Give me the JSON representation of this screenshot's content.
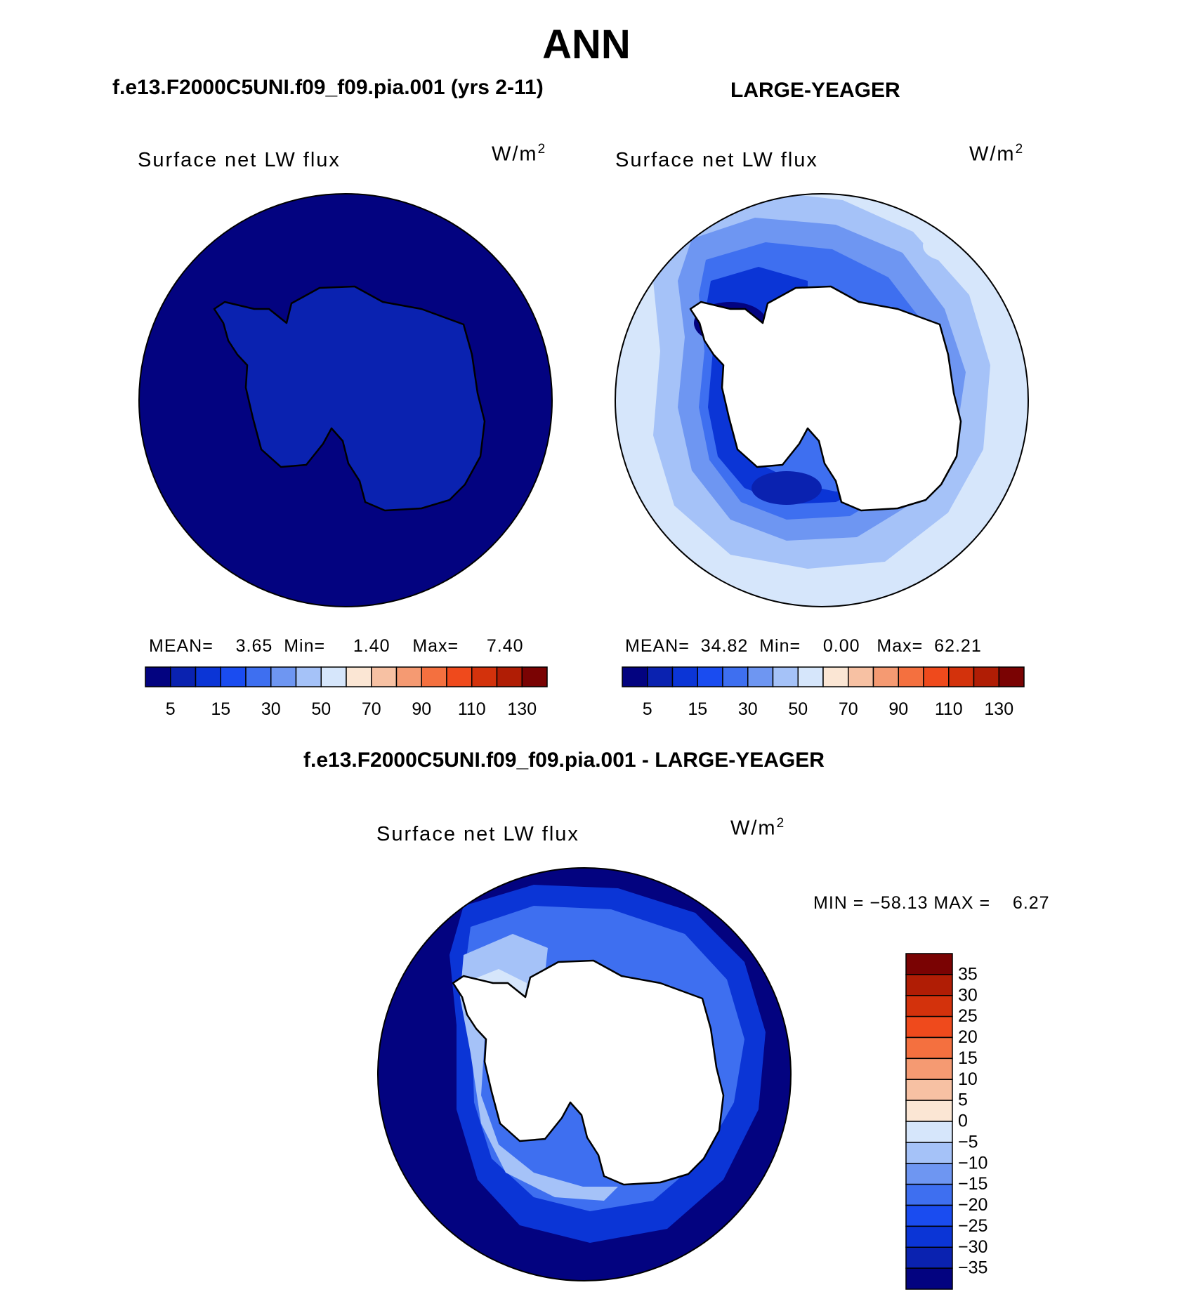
{
  "figure": {
    "title": "ANN",
    "panel_left": {
      "header": "f.e13.F2000C5UNI.f09_f09.pia.001 (yrs 2-11)",
      "variable": "Surface net LW flux",
      "units_base": "W/m",
      "units_exp": "2",
      "stats": {
        "mean_label": "MEAN=",
        "mean": "3.65",
        "min_label": "Min=",
        "min": "1.40",
        "max_label": "Max=",
        "max": "7.40"
      }
    },
    "panel_right": {
      "header": "LARGE-YEAGER",
      "variable": "Surface net LW flux",
      "units_base": "W/m",
      "units_exp": "2",
      "stats": {
        "mean_label": "MEAN=",
        "mean": "34.82",
        "min_label": "Min=",
        "min": "0.00",
        "max_label": "Max=",
        "max": "62.21"
      }
    },
    "panel_diff": {
      "header": "f.e13.F2000C5UNI.f09_f09.pia.001 - LARGE-YEAGER",
      "variable": "Surface net LW flux",
      "units_base": "W/m",
      "units_exp": "2",
      "minmax": "MIN = −58.13 MAX =    6.27"
    }
  },
  "chart_data": [
    {
      "type": "heatmap",
      "projection": "south polar stereographic",
      "title": "f.e13.F2000C5UNI.f09_f09.pia.001 (yrs 2-11)",
      "field": "Surface net LW flux",
      "units": "W/m2",
      "mean": 3.65,
      "min": 1.4,
      "max": 7.4,
      "colorbar": {
        "orientation": "horizontal",
        "tick_labels": [
          "5",
          "15",
          "30",
          "50",
          "70",
          "90",
          "110",
          "130"
        ],
        "levels": [
          5,
          10,
          15,
          20,
          30,
          40,
          50,
          60,
          70,
          80,
          90,
          100,
          110,
          120,
          130
        ],
        "colors": [
          "#030380",
          "#0a22b0",
          "#0b35d6",
          "#1a4cf0",
          "#3e6ff0",
          "#6e96f2",
          "#a5c2f8",
          "#d6e6fb",
          "#fbe6d4",
          "#f7c1a3",
          "#f59a72",
          "#f4703f",
          "#ef4a1c",
          "#d3320c",
          "#b01d05",
          "#7a0303"
        ]
      }
    },
    {
      "type": "heatmap",
      "projection": "south polar stereographic",
      "title": "LARGE-YEAGER",
      "field": "Surface net LW flux",
      "units": "W/m2",
      "mean": 34.82,
      "min": 0.0,
      "max": 62.21,
      "colorbar": {
        "orientation": "horizontal",
        "tick_labels": [
          "5",
          "15",
          "30",
          "50",
          "70",
          "90",
          "110",
          "130"
        ],
        "levels": [
          5,
          10,
          15,
          20,
          30,
          40,
          50,
          60,
          70,
          80,
          90,
          100,
          110,
          120,
          130
        ],
        "colors": [
          "#030380",
          "#0a22b0",
          "#0b35d6",
          "#1a4cf0",
          "#3e6ff0",
          "#6e96f2",
          "#a5c2f8",
          "#d6e6fb",
          "#fbe6d4",
          "#f7c1a3",
          "#f59a72",
          "#f4703f",
          "#ef4a1c",
          "#d3320c",
          "#b01d05",
          "#7a0303"
        ]
      }
    },
    {
      "type": "heatmap",
      "projection": "south polar stereographic",
      "title": "f.e13.F2000C5UNI.f09_f09.pia.001 - LARGE-YEAGER",
      "field": "Surface net LW flux",
      "units": "W/m2",
      "min": -58.13,
      "max": 6.27,
      "colorbar": {
        "orientation": "vertical",
        "tick_labels": [
          "35",
          "30",
          "25",
          "20",
          "15",
          "10",
          "5",
          "0",
          "−5",
          "−10",
          "−15",
          "−20",
          "−25",
          "−30",
          "−35"
        ],
        "colors": [
          "#7a0303",
          "#b01d05",
          "#d3320c",
          "#ef4a1c",
          "#f4703f",
          "#f59a72",
          "#f7c1a3",
          "#fbe6d4",
          "#d6e6fb",
          "#a5c2f8",
          "#6e96f2",
          "#3e6ff0",
          "#1a4cf0",
          "#0b35d6",
          "#0a22b0",
          "#030380"
        ]
      }
    }
  ]
}
